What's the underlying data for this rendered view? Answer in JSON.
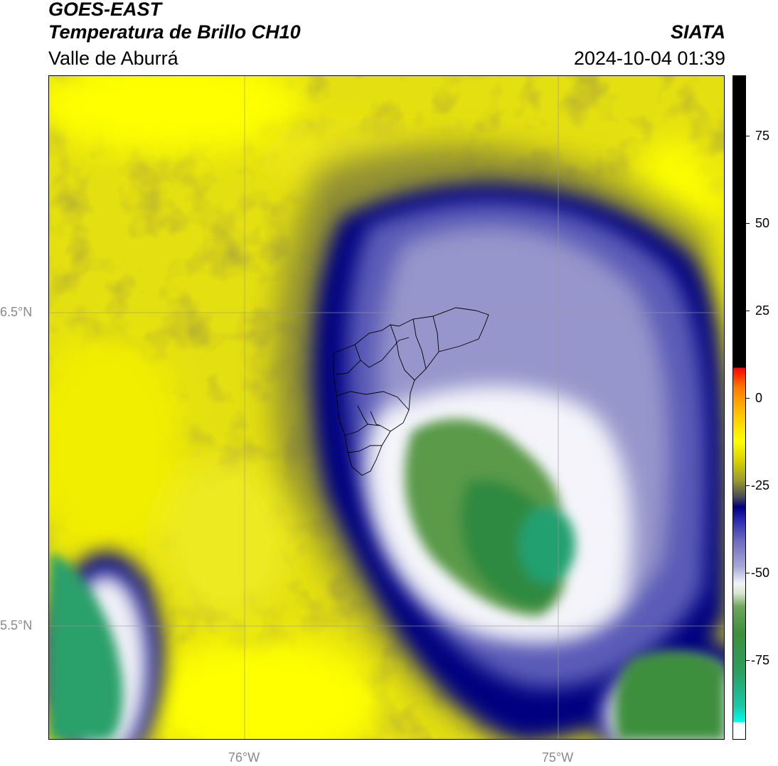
{
  "header": {
    "satellite": "GOES-EAST",
    "product": "Temperatura de Brillo CH10",
    "region": "Valle de Aburrá",
    "organization": "SIATA",
    "datetime": "2024-10-04 01:39"
  },
  "map": {
    "lat_labels": [
      "6.5°N",
      "5.5°N"
    ],
    "lon_labels": [
      "76°W",
      "75°W"
    ],
    "grid": true
  },
  "colorbar": {
    "ticks": [
      "75",
      "50",
      "25",
      "0",
      "-25",
      "-50",
      "-75"
    ],
    "colors": {
      "warm": "#ffff00",
      "olive": "#8c8c35",
      "navy": "#000080",
      "lavender": "#a8a8d6",
      "white": "#ffffff",
      "green": "#3e8e3e",
      "teal": "#2aa07a",
      "black": "#000000",
      "red": "#ff0000"
    }
  }
}
